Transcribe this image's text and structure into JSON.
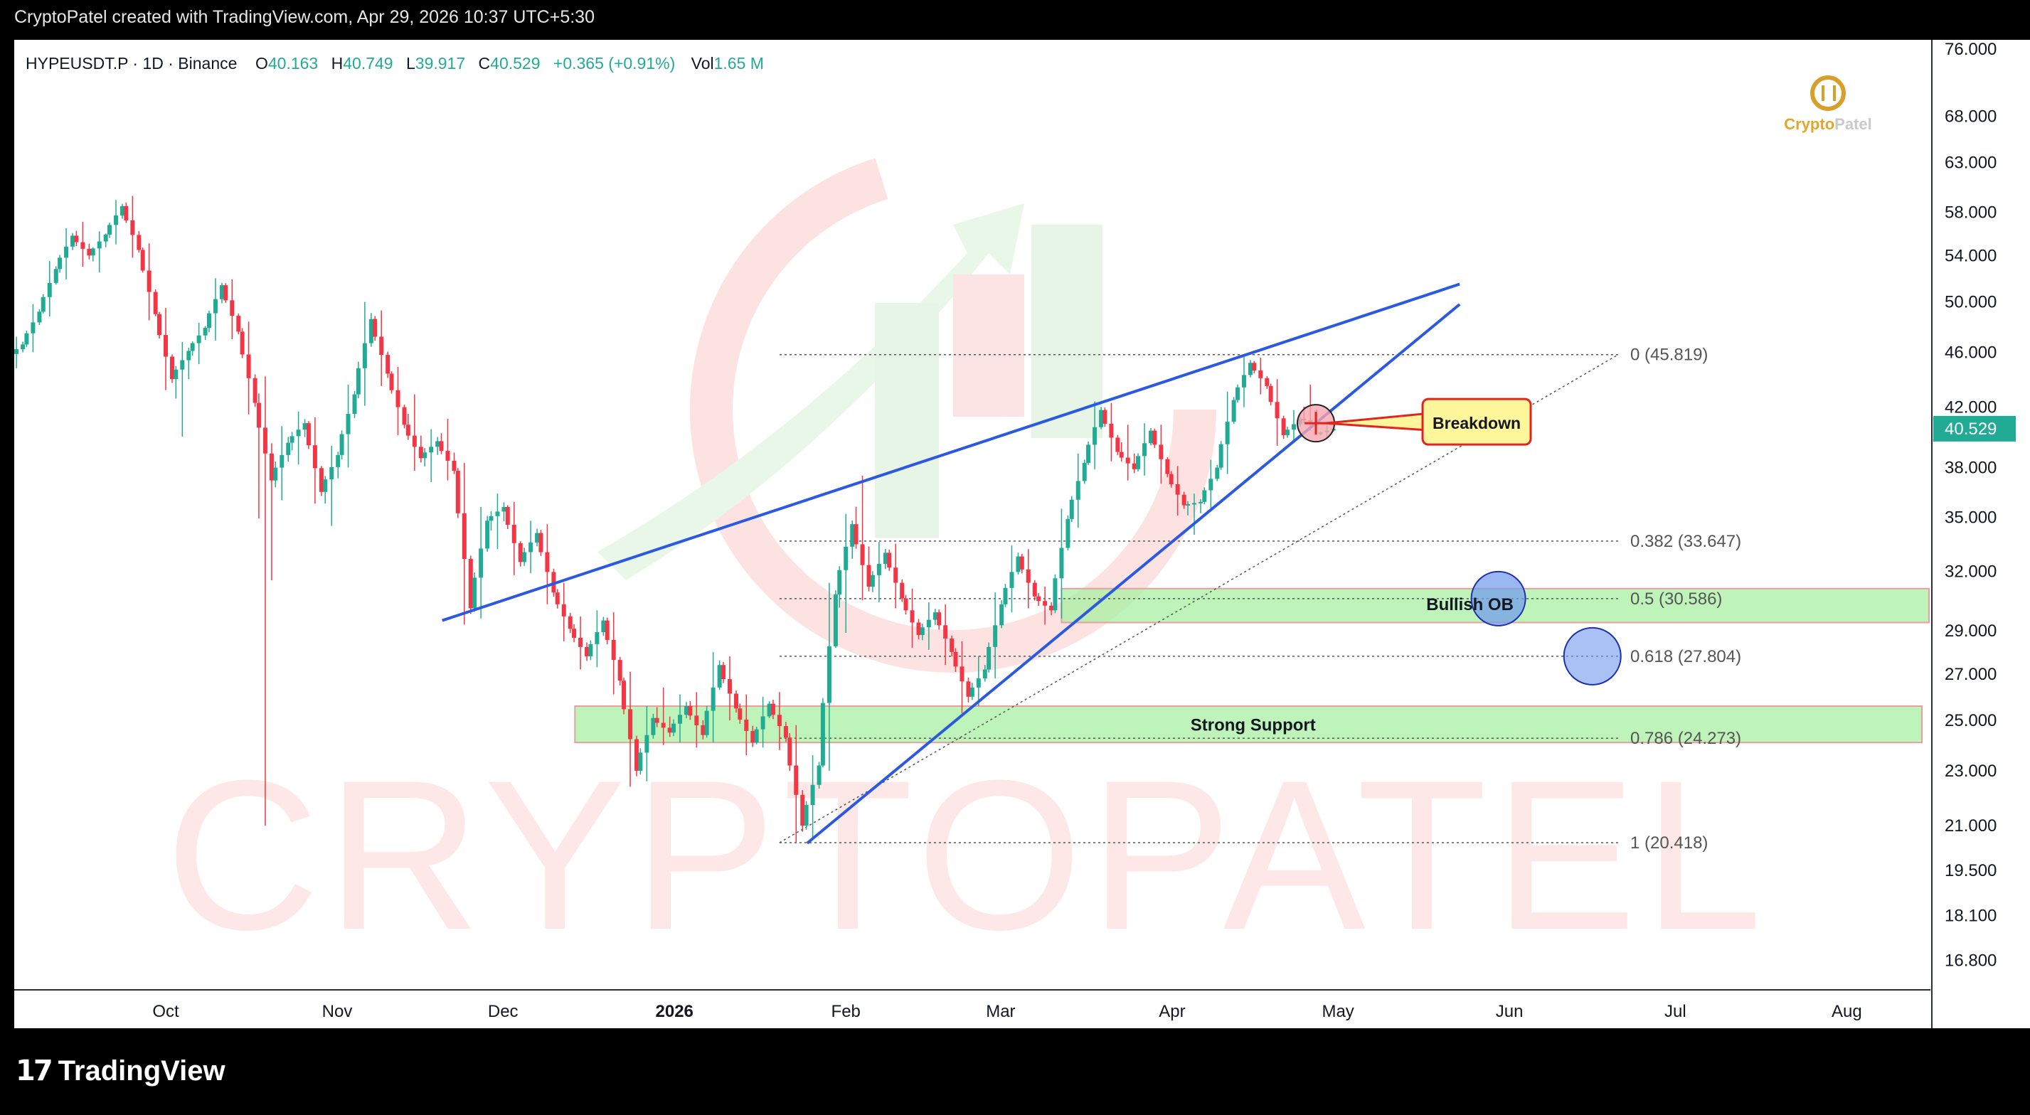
{
  "header": {
    "attribution": "CryptoPatel created with TradingView.com, Apr 29, 2026 10:37 UTC+5:30"
  },
  "legend": {
    "symbol": "HYPEUSDT.P · 1D · Binance",
    "open_label": "O",
    "open": "40.163",
    "high_label": "H",
    "high": "40.749",
    "low_label": "L",
    "low": "39.917",
    "close_label": "C",
    "close": "40.529",
    "change": "+0.365 (+0.91%)",
    "vol_label": "Vol",
    "vol": "1.65 M"
  },
  "watermark": {
    "text": "CRYPTOPATEL",
    "logo_name_part1": "Crypto",
    "logo_name_part2": "Patel"
  },
  "footer": {
    "brand": "TradingView",
    "brand_mark": "17"
  },
  "colors": {
    "up": "#22ab94",
    "down": "#f23645",
    "trendline": "#2b59e0",
    "zone_fill": "#a8f0a2",
    "zone_border": "#e6a0a0",
    "price_badge": "#22ab94",
    "callout_fill": "#fff59a",
    "callout_border": "#e0251f",
    "ob_circle": "#6f98ef"
  },
  "chart_data": {
    "type": "candlestick",
    "symbol": "HYPEUSDT.P",
    "timeframe": "1D",
    "exchange": "Binance",
    "y_scale": "log",
    "ylim": [
      16.0,
      77.0
    ],
    "y_ticks": [
      "76.000",
      "68.000",
      "63.000",
      "58.000",
      "54.000",
      "50.000",
      "46.000",
      "42.000",
      "38.000",
      "35.000",
      "32.000",
      "29.000",
      "27.000",
      "25.000",
      "23.000",
      "21.000",
      "19.500",
      "18.100",
      "16.800"
    ],
    "x_ticks": [
      "Oct",
      "Nov",
      "Dec",
      "2026",
      "Feb",
      "Mar",
      "Apr",
      "May",
      "Jun",
      "Jul",
      "Aug"
    ],
    "last_price": "40.529",
    "fib_levels": [
      {
        "ratio": "0",
        "price": 45.819,
        "label": "0 (45.819)"
      },
      {
        "ratio": "0.382",
        "price": 33.647,
        "label": "0.382 (33.647)"
      },
      {
        "ratio": "0.5",
        "price": 30.586,
        "label": "0.5 (30.586)"
      },
      {
        "ratio": "0.618",
        "price": 27.804,
        "label": "0.618 (27.804)"
      },
      {
        "ratio": "0.786",
        "price": 24.273,
        "label": "0.786 (24.273)"
      },
      {
        "ratio": "1",
        "price": 20.418,
        "label": "1 (20.418)"
      }
    ],
    "zones": [
      {
        "name": "Bullish OB",
        "top": 31.1,
        "bottom": 29.4
      },
      {
        "name": "Strong Support",
        "top": 25.6,
        "bottom": 24.1
      }
    ],
    "annotations": [
      {
        "text": "Breakdown",
        "date": "2026-04-27",
        "price": 40.9
      },
      {
        "text": "Bullish OB",
        "date": "2026-05-30",
        "price": 30.586
      },
      {
        "text": "",
        "date": "2026-06-16",
        "price": 27.804
      }
    ],
    "trendlines": [
      {
        "from": [
          "2025-11-20",
          29.5
        ],
        "to": [
          "2026-05-23",
          51.5
        ]
      },
      {
        "from": [
          "2026-01-25",
          20.4
        ],
        "to": [
          "2026-05-23",
          49.8
        ]
      }
    ],
    "candles_ohlc": [
      [
        "2025-09-04",
        45.5,
        47.2,
        44.8,
        46.6
      ],
      [
        "2025-09-07",
        46.6,
        49.8,
        46.0,
        49.2
      ],
      [
        "2025-09-10",
        49.2,
        53.5,
        48.8,
        52.8
      ],
      [
        "2025-09-13",
        52.8,
        56.5,
        51.9,
        55.8
      ],
      [
        "2025-09-16",
        55.8,
        57.1,
        53.0,
        54.0
      ],
      [
        "2025-09-19",
        54.0,
        56.2,
        52.5,
        55.9
      ],
      [
        "2025-09-22",
        55.9,
        59.2,
        55.0,
        58.6
      ],
      [
        "2025-09-25",
        58.6,
        59.6,
        53.8,
        54.5
      ],
      [
        "2025-09-28",
        54.5,
        55.1,
        48.5,
        49.0
      ],
      [
        "2025-10-01",
        49.0,
        49.5,
        43.2,
        44.0
      ],
      [
        "2025-10-04",
        44.0,
        46.8,
        40.0,
        46.1
      ],
      [
        "2025-10-07",
        46.1,
        48.3,
        45.1,
        47.9
      ],
      [
        "2025-10-10",
        47.9,
        52.0,
        46.9,
        51.4
      ],
      [
        "2025-10-13",
        51.4,
        51.9,
        47.0,
        47.6
      ],
      [
        "2025-10-16",
        47.6,
        48.4,
        41.5,
        42.3
      ],
      [
        "2025-10-19",
        42.3,
        44.2,
        21.0,
        37.2
      ],
      [
        "2025-10-22",
        37.2,
        40.7,
        36.0,
        39.6
      ],
      [
        "2025-10-25",
        39.6,
        41.7,
        38.2,
        40.9
      ],
      [
        "2025-10-28",
        40.9,
        41.3,
        35.8,
        36.5
      ],
      [
        "2025-10-31",
        36.5,
        39.4,
        34.5,
        38.8
      ],
      [
        "2025-11-03",
        38.8,
        43.6,
        38.0,
        42.9
      ],
      [
        "2025-11-06",
        42.9,
        50.0,
        42.1,
        48.6
      ],
      [
        "2025-11-09",
        48.6,
        49.3,
        43.5,
        44.4
      ],
      [
        "2025-11-12",
        44.4,
        44.9,
        40.1,
        40.8
      ],
      [
        "2025-11-15",
        40.8,
        42.9,
        37.8,
        38.6
      ],
      [
        "2025-11-18",
        38.6,
        40.5,
        37.1,
        39.7
      ],
      [
        "2025-11-21",
        39.7,
        41.2,
        37.2,
        37.8
      ],
      [
        "2025-11-24",
        37.8,
        38.3,
        29.3,
        30.1
      ],
      [
        "2025-11-27",
        30.1,
        35.6,
        29.6,
        34.8
      ],
      [
        "2025-11-30",
        34.8,
        36.4,
        33.2,
        35.6
      ],
      [
        "2025-12-03",
        35.6,
        35.9,
        31.8,
        32.5
      ],
      [
        "2025-12-06",
        32.5,
        34.8,
        31.9,
        34.1
      ],
      [
        "2025-12-09",
        34.1,
        34.6,
        30.3,
        30.9
      ],
      [
        "2025-12-12",
        30.9,
        31.4,
        28.5,
        29.1
      ],
      [
        "2025-12-15",
        29.1,
        29.7,
        27.2,
        27.8
      ],
      [
        "2025-12-18",
        27.8,
        30.0,
        27.3,
        29.5
      ],
      [
        "2025-12-21",
        29.5,
        29.9,
        26.1,
        26.7
      ],
      [
        "2025-12-24",
        26.7,
        27.1,
        22.4,
        23.0
      ],
      [
        "2025-12-27",
        23.0,
        25.6,
        22.6,
        25.1
      ],
      [
        "2025-12-30",
        25.1,
        26.4,
        24.0,
        24.5
      ],
      [
        "2026-01-02",
        24.5,
        26.1,
        24.1,
        25.6
      ],
      [
        "2026-01-05",
        25.6,
        26.2,
        23.9,
        24.4
      ],
      [
        "2026-01-08",
        24.4,
        28.0,
        24.1,
        27.4
      ],
      [
        "2026-01-11",
        27.4,
        27.8,
        25.0,
        25.5
      ],
      [
        "2026-01-14",
        25.5,
        26.1,
        23.6,
        24.1
      ],
      [
        "2026-01-17",
        24.1,
        26.0,
        23.9,
        25.7
      ],
      [
        "2026-01-20",
        25.7,
        26.2,
        23.8,
        24.3
      ],
      [
        "2026-01-23",
        24.3,
        24.8,
        20.4,
        21.0
      ],
      [
        "2026-01-26",
        21.0,
        23.6,
        20.6,
        23.2
      ],
      [
        "2026-01-29",
        23.2,
        31.4,
        23.0,
        30.8
      ],
      [
        "2026-02-01",
        30.8,
        35.2,
        28.9,
        34.6
      ],
      [
        "2026-02-04",
        34.6,
        37.5,
        30.5,
        31.2
      ],
      [
        "2026-02-07",
        31.2,
        33.6,
        30.4,
        33.0
      ],
      [
        "2026-02-10",
        33.0,
        33.5,
        30.1,
        30.6
      ],
      [
        "2026-02-13",
        30.6,
        31.1,
        28.2,
        28.8
      ],
      [
        "2026-02-16",
        28.8,
        30.4,
        28.1,
        29.9
      ],
      [
        "2026-02-19",
        29.9,
        30.3,
        27.4,
        28.0
      ],
      [
        "2026-02-22",
        28.0,
        28.5,
        25.3,
        26.0
      ],
      [
        "2026-02-25",
        26.0,
        27.8,
        25.6,
        27.2
      ],
      [
        "2026-02-28",
        27.2,
        30.9,
        26.8,
        30.3
      ],
      [
        "2026-03-03",
        30.3,
        33.4,
        29.9,
        32.8
      ],
      [
        "2026-03-06",
        32.8,
        33.2,
        30.1,
        30.7
      ],
      [
        "2026-03-09",
        30.7,
        31.2,
        29.3,
        30.0
      ],
      [
        "2026-03-12",
        30.0,
        35.5,
        29.6,
        34.9
      ],
      [
        "2026-03-15",
        34.9,
        38.9,
        34.4,
        38.3
      ],
      [
        "2026-03-18",
        38.3,
        42.4,
        37.9,
        41.8
      ],
      [
        "2026-03-21",
        41.8,
        42.3,
        38.4,
        39.0
      ],
      [
        "2026-03-24",
        39.0,
        40.8,
        37.2,
        37.9
      ],
      [
        "2026-03-27",
        37.9,
        40.9,
        37.5,
        40.4
      ],
      [
        "2026-03-30",
        40.4,
        40.8,
        37.0,
        37.6
      ],
      [
        "2026-04-02",
        37.6,
        38.1,
        35.1,
        35.7
      ],
      [
        "2026-04-05",
        35.7,
        36.4,
        34.0,
        35.9
      ],
      [
        "2026-04-08",
        35.9,
        38.5,
        35.5,
        38.0
      ],
      [
        "2026-04-11",
        38.0,
        43.1,
        37.6,
        42.5
      ],
      [
        "2026-04-14",
        42.5,
        45.8,
        42.0,
        45.2
      ],
      [
        "2026-04-17",
        45.2,
        45.6,
        42.9,
        43.5
      ],
      [
        "2026-04-20",
        43.5,
        44.0,
        39.4,
        40.1
      ],
      [
        "2026-04-23",
        40.1,
        41.8,
        39.6,
        41.2
      ],
      [
        "2026-04-26",
        41.2,
        43.6,
        40.4,
        40.9
      ],
      [
        "2026-04-29",
        40.163,
        40.749,
        39.917,
        40.529
      ]
    ]
  }
}
